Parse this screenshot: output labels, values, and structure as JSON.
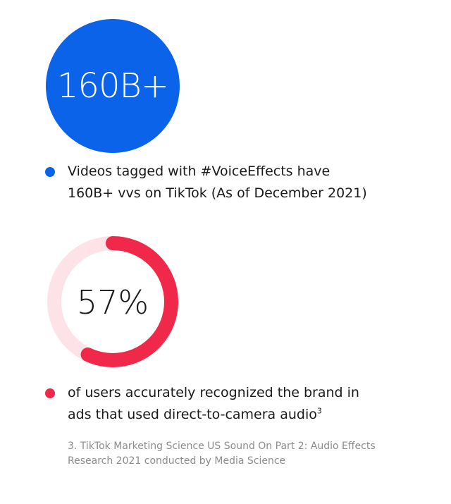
{
  "stat1": {
    "value": "160B+",
    "color": "#0a63e8",
    "description": "Videos tagged with #VoiceEffects have 160B+ vvs on TikTok (As of December 2021)"
  },
  "chart_data": {
    "type": "pie",
    "values": [
      57,
      43
    ],
    "percent": 57,
    "center_label": "57%",
    "colors": {
      "filled": "#f0284a",
      "remaining": "#fde3e8"
    }
  },
  "stat2": {
    "description": "of users accurately recognized the brand in ads that used direct-to-camera audio",
    "footnote_ref": "3",
    "color": "#f0284a"
  },
  "footnote": {
    "text": "3. TikTok Marketing Science US Sound On Part 2: Audio Effects Research 2021 conducted by Media Science"
  }
}
